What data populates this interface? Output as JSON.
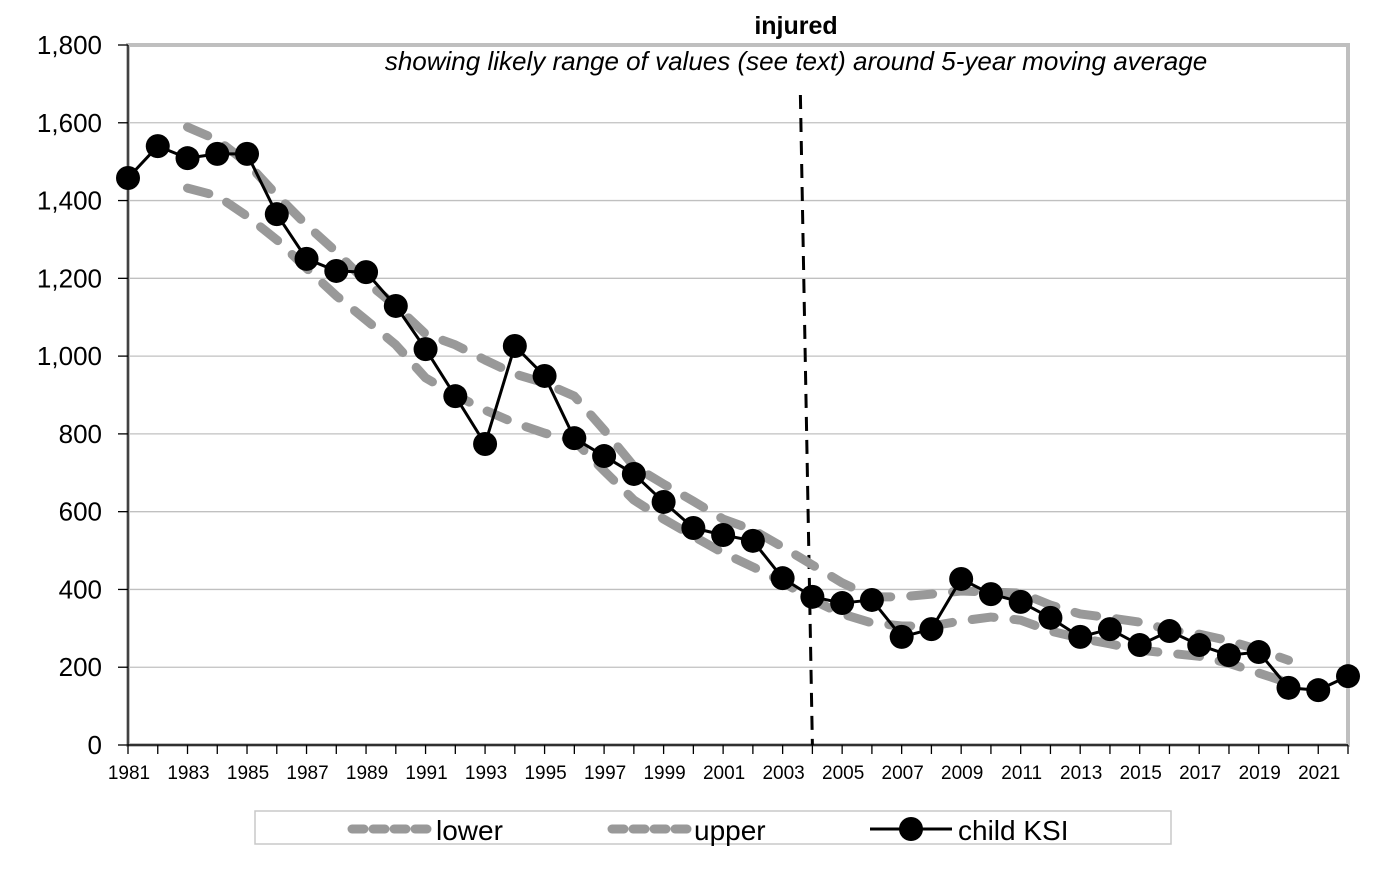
{
  "chart_data": {
    "type": "line",
    "title": "injured",
    "subtitle": "showing likely range of values (see text) around 5-year moving  average",
    "xlabel": "",
    "ylabel": "",
    "ylim": [
      0,
      1800
    ],
    "yticks": [
      0,
      200,
      400,
      600,
      800,
      1000,
      1200,
      1400,
      1600,
      1800
    ],
    "ytick_labels": [
      "0",
      "200",
      "400",
      "600",
      "800",
      "1,000",
      "1,200",
      "1,400",
      "1,600",
      "1,800"
    ],
    "xlim": [
      1981,
      2022
    ],
    "xtick_labels": [
      "1981",
      "1983",
      "1985",
      "1987",
      "1989",
      "1991",
      "1993",
      "1995",
      "1997",
      "1999",
      "2001",
      "2003",
      "2005",
      "2007",
      "2009",
      "2011",
      "2013",
      "2015",
      "2017",
      "2019",
      "2021"
    ],
    "grid": "horizontal",
    "legend_position": "bottom",
    "annotations": [
      {
        "type": "vertical-dashed-line",
        "x": 2004
      }
    ],
    "series": [
      {
        "name": "lower",
        "style": "dashed",
        "color": "#999999",
        "x": [
          1983,
          1984,
          1985,
          1986,
          1987,
          1988,
          1989,
          1990,
          1991,
          1992,
          1993,
          1994,
          1995,
          1996,
          1997,
          1998,
          1999,
          2000,
          2001,
          2002,
          2003,
          2004,
          2005,
          2006,
          2007,
          2008,
          2009,
          2010,
          2011,
          2012,
          2013,
          2014,
          2015,
          2016,
          2017,
          2018,
          2019,
          2020
        ],
        "values": [
          1432,
          1412,
          1360,
          1299,
          1226,
          1155,
          1093,
          1029,
          944,
          900,
          861,
          828,
          802,
          782,
          705,
          630,
          581,
          537,
          494,
          458,
          419,
          373,
          337,
          314,
          306,
          306,
          319,
          329,
          321,
          293,
          275,
          260,
          244,
          236,
          228,
          210,
          185,
          160
        ]
      },
      {
        "name": "upper",
        "style": "dashed",
        "color": "#999999",
        "x": [
          1983,
          1984,
          1985,
          1986,
          1987,
          1988,
          1989,
          1990,
          1991,
          1992,
          1993,
          1994,
          1995,
          1996,
          1997,
          1998,
          1999,
          2000,
          2001,
          2002,
          2003,
          2004,
          2005,
          2006,
          2007,
          2008,
          2009,
          2010,
          2011,
          2012,
          2013,
          2014,
          2015,
          2016,
          2017,
          2018,
          2019,
          2020
        ],
        "values": [
          1589,
          1556,
          1497,
          1414,
          1337,
          1268,
          1191,
          1129,
          1057,
          1029,
          990,
          954,
          931,
          897,
          810,
          717,
          671,
          627,
          581,
          553,
          509,
          463,
          417,
          381,
          381,
          388,
          396,
          393,
          391,
          360,
          337,
          327,
          316,
          296,
          285,
          268,
          245,
          218
        ]
      },
      {
        "name": "child KSI",
        "style": "solid-with-markers",
        "color": "#000000",
        "x": [
          1981,
          1982,
          1983,
          1984,
          1985,
          1986,
          1987,
          1988,
          1989,
          1990,
          1991,
          1992,
          1993,
          1994,
          1995,
          1996,
          1997,
          1998,
          1999,
          2000,
          2001,
          2002,
          2003,
          2004,
          2005,
          2006,
          2007,
          2008,
          2009,
          2010,
          2011,
          2012,
          2013,
          2014,
          2015,
          2016,
          2017,
          2018,
          2019,
          2020,
          2021,
          2022
        ],
        "values": [
          1458,
          1540,
          1509,
          1520,
          1520,
          1365,
          1250,
          1219,
          1216,
          1129,
          1018,
          897,
          774,
          1026,
          949,
          789,
          743,
          697,
          625,
          558,
          540,
          525,
          429,
          381,
          365,
          373,
          278,
          298,
          427,
          388,
          368,
          327,
          278,
          298,
          257,
          293,
          257,
          231,
          239,
          147,
          141,
          177
        ]
      }
    ]
  },
  "legend": {
    "items": [
      {
        "label": "lower"
      },
      {
        "label": "upper"
      },
      {
        "label": "child KSI"
      }
    ]
  }
}
